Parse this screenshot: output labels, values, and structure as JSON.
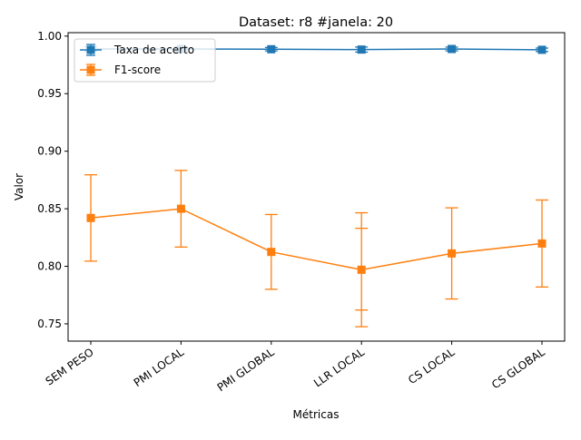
{
  "chart_data": {
    "type": "line",
    "title": "Dataset: r8 #janela: 20",
    "xlabel": "Métricas",
    "ylabel": "Valor",
    "categories": [
      "SEM PESO",
      "PMI LOCAL",
      "PMI GLOBAL",
      "LLR LOCAL",
      "CS LOCAL",
      "CS GLOBAL"
    ],
    "ylim": [
      0.735,
      1.003
    ],
    "yticks": [
      0.75,
      0.8,
      0.85,
      0.9,
      0.95,
      1.0
    ],
    "ytick_labels": [
      "0.75",
      "0.80",
      "0.85",
      "0.90",
      "0.95",
      "1.00"
    ],
    "grid": false,
    "legend_position": "top-left",
    "series": [
      {
        "name": "Taxa de acerto",
        "color": "#1f77b4",
        "marker": "square",
        "values": [
          0.9888,
          0.9888,
          0.9886,
          0.9883,
          0.9888,
          0.9881
        ],
        "errors": [
          0.002,
          0.0018,
          0.0015,
          0.0022,
          0.0016,
          0.0015
        ]
      },
      {
        "name": "F1-score",
        "color": "#ff7f0e",
        "marker": "square",
        "values": [
          0.842,
          0.85,
          0.8125,
          0.797,
          0.8112,
          0.8198
        ],
        "errors": [
          0.0375,
          0.0333,
          0.0325,
          0.0495,
          0.0396,
          0.0378
        ],
        "extra_caps": [
          null,
          null,
          null,
          [
            0.833,
            0.762
          ],
          null,
          null
        ]
      }
    ]
  }
}
